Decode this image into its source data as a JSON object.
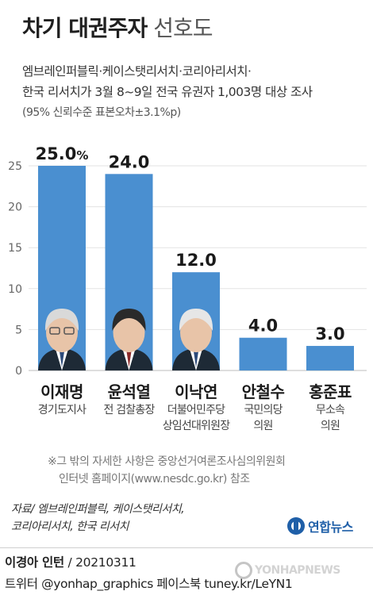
{
  "title": {
    "bold": "차기 대권주자",
    "light": "선호도"
  },
  "subtitle": [
    "엠브레인퍼블릭·케이스탯리서치·코리아리서치·",
    "한국 리서치가 3월 8~9일 전국 유권자 1,003명 대상 조사",
    "(95% 신뢰수준 표본오차±3.1%p)"
  ],
  "chart_data": {
    "type": "bar",
    "title": "차기 대권주자 선호도",
    "categories": [
      "이재명",
      "윤석열",
      "이낙연",
      "안철수",
      "홍준표"
    ],
    "roles": [
      [
        "경기도지사"
      ],
      [
        "전 검찰총장"
      ],
      [
        "더불어민주당",
        "상임선대위원장"
      ],
      [
        "국민의당",
        "의원"
      ],
      [
        "무소속",
        "의원"
      ]
    ],
    "values": [
      25.0,
      24.0,
      12.0,
      4.0,
      3.0
    ],
    "value_labels": [
      "25.0",
      "24.0",
      "12.0",
      "4.0",
      "3.0"
    ],
    "unit": "%",
    "yticks": [
      0,
      5,
      10,
      15,
      20,
      25
    ],
    "ylim": [
      0,
      27
    ],
    "grid": true,
    "bar_color": "#4a8fd0",
    "has_photo": [
      true,
      true,
      true,
      false,
      false
    ]
  },
  "note": [
    "※그 밖의 자세한 사항은 중앙선거여론조사심의위원회",
    "인터넷 홈페이지(www.nesdc.go.kr) 참조"
  ],
  "source": [
    "자료/ 엠브레인퍼블릭, 케이스탯리서치,",
    "코리아리서치, 한국 리서치"
  ],
  "logo": "연합뉴스",
  "watermark": "YONHAPNEWS",
  "credit": {
    "author": "이경아 인턴",
    "date": "/ 20210311"
  },
  "social": "트위터 @yonhap_graphics  페이스북 tuney.kr/LeYN1",
  "colors": {
    "bar": "#4a8fd0",
    "accent": "#1f5fa8"
  }
}
